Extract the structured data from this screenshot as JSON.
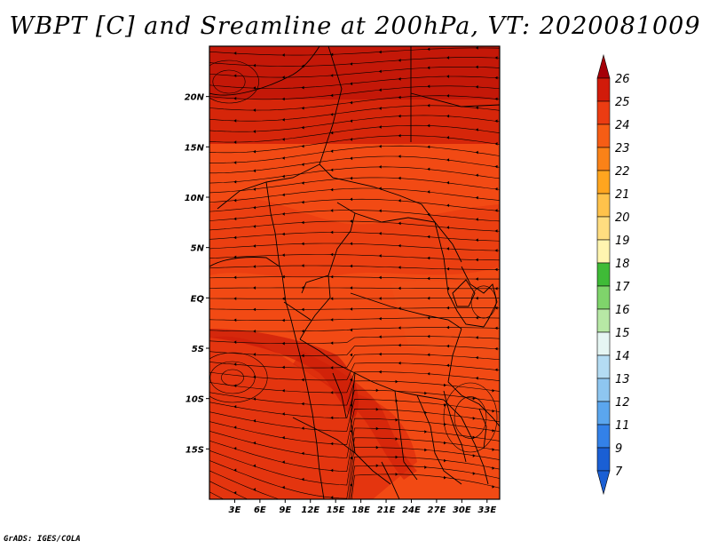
{
  "title": "WBPT [C] and Sreamline at 200hPa, VT: 2020081009",
  "footer": "GrADS: IGES/COLA",
  "map": {
    "lat_labels": [
      "20N",
      "15N",
      "10N",
      "5N",
      "EQ",
      "5S",
      "10S",
      "15S"
    ],
    "lat_values": [
      20,
      15,
      10,
      5,
      0,
      -5,
      -10,
      -15
    ],
    "lon_labels": [
      "3E",
      "6E",
      "9E",
      "12E",
      "15E",
      "18E",
      "21E",
      "24E",
      "27E",
      "30E",
      "33E"
    ],
    "lon_values": [
      3,
      6,
      9,
      12,
      15,
      18,
      21,
      24,
      27,
      30,
      33
    ],
    "lon_range": [
      0,
      34.5
    ],
    "lat_range": [
      -20,
      25
    ],
    "field_colors": {
      "base": "#f24a14",
      "warm": "#e83a10",
      "hot": "#cf1e08",
      "hottest": "#bb1306"
    }
  },
  "colorbar": {
    "levels": [
      "26",
      "25",
      "24",
      "23",
      "22",
      "21",
      "20",
      "19",
      "18",
      "17",
      "16",
      "15",
      "14",
      "13",
      "12",
      "11",
      "9",
      "7"
    ],
    "colors": [
      "#a50008",
      "#d11b0a",
      "#eb3c12",
      "#f65d15",
      "#fa8218",
      "#ffa51f",
      "#ffc24b",
      "#ffdd80",
      "#fff5b0",
      "#3fbb37",
      "#7fd46b",
      "#b7e8a5",
      "#e6f6f3",
      "#b4dcf3",
      "#8ec6f0",
      "#5ba6ee",
      "#3381e8",
      "#1a5fd4"
    ]
  }
}
